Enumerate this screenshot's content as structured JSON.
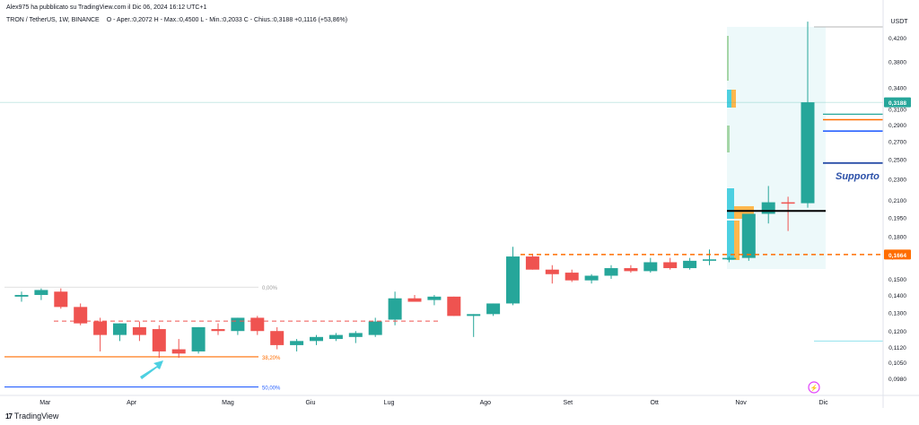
{
  "header": {
    "published": "Alex975 ha pubblicato su TradingView.com il Dic 06, 2024 16:12 UTC+1",
    "symbol": "TRON / TetherUS, 1W, BINANCE",
    "ohlc": "O - Aper.:0,2072  H - Max.:0,4500  L - Min.:0,2033  C - Chius.:0,3188  +0,1116 (+53,86%)"
  },
  "brand": {
    "logo": "17",
    "name": "TradingView"
  },
  "chart_data": {
    "type": "candlestick",
    "currency": "USDT",
    "ylim": [
      0.0915,
      0.44
    ],
    "y_ticks": [
      0.42,
      0.38,
      0.34,
      0.31,
      0.29,
      0.27,
      0.25,
      0.23,
      0.21,
      0.195,
      0.18,
      0.165,
      0.15,
      0.14,
      0.13,
      0.12,
      0.112,
      0.105,
      0.098
    ],
    "y_tick_labels": [
      "0,4200",
      "0,3800",
      "0,3400",
      "0,3100",
      "0,2900",
      "0,2700",
      "0,2500",
      "0,2300",
      "0,2100",
      "0,1950",
      "0,1800",
      "0,1650",
      "0,1500",
      "0,1400",
      "0,1300",
      "0,1200",
      "0,1120",
      "0,1050",
      "0,0980"
    ],
    "x_labels": [
      {
        "label": "Mar",
        "index": 1.2
      },
      {
        "label": "Apr",
        "index": 5.6
      },
      {
        "label": "Mag",
        "index": 10.5
      },
      {
        "label": "Giu",
        "index": 14.7
      },
      {
        "label": "Lug",
        "index": 18.7
      },
      {
        "label": "Ago",
        "index": 23.6
      },
      {
        "label": "Set",
        "index": 27.8
      },
      {
        "label": "Ott",
        "index": 32.2
      },
      {
        "label": "Nov",
        "index": 36.6
      },
      {
        "label": "Dic",
        "index": 40.8
      }
    ],
    "candles": [
      {
        "o": 0.139,
        "h": 0.142,
        "l": 0.136,
        "c": 0.14
      },
      {
        "o": 0.14,
        "h": 0.144,
        "l": 0.137,
        "c": 0.143
      },
      {
        "o": 0.142,
        "h": 0.144,
        "l": 0.132,
        "c": 0.133
      },
      {
        "o": 0.133,
        "h": 0.135,
        "l": 0.123,
        "c": 0.124
      },
      {
        "o": 0.125,
        "h": 0.127,
        "l": 0.11,
        "c": 0.118
      },
      {
        "o": 0.118,
        "h": 0.124,
        "l": 0.115,
        "c": 0.124
      },
      {
        "o": 0.122,
        "h": 0.125,
        "l": 0.115,
        "c": 0.118
      },
      {
        "o": 0.121,
        "h": 0.123,
        "l": 0.107,
        "c": 0.11
      },
      {
        "o": 0.111,
        "h": 0.116,
        "l": 0.107,
        "c": 0.109
      },
      {
        "o": 0.11,
        "h": 0.122,
        "l": 0.109,
        "c": 0.122
      },
      {
        "o": 0.121,
        "h": 0.124,
        "l": 0.118,
        "c": 0.12
      },
      {
        "o": 0.12,
        "h": 0.127,
        "l": 0.118,
        "c": 0.127
      },
      {
        "o": 0.127,
        "h": 0.128,
        "l": 0.118,
        "c": 0.12
      },
      {
        "o": 0.12,
        "h": 0.122,
        "l": 0.111,
        "c": 0.113
      },
      {
        "o": 0.113,
        "h": 0.116,
        "l": 0.11,
        "c": 0.115
      },
      {
        "o": 0.115,
        "h": 0.118,
        "l": 0.113,
        "c": 0.117
      },
      {
        "o": 0.116,
        "h": 0.119,
        "l": 0.115,
        "c": 0.118
      },
      {
        "o": 0.117,
        "h": 0.12,
        "l": 0.114,
        "c": 0.119
      },
      {
        "o": 0.118,
        "h": 0.127,
        "l": 0.117,
        "c": 0.125
      },
      {
        "o": 0.126,
        "h": 0.142,
        "l": 0.123,
        "c": 0.138
      },
      {
        "o": 0.138,
        "h": 0.14,
        "l": 0.136,
        "c": 0.136
      },
      {
        "o": 0.137,
        "h": 0.14,
        "l": 0.134,
        "c": 0.139
      },
      {
        "o": 0.139,
        "h": 0.139,
        "l": 0.128,
        "c": 0.128
      },
      {
        "o": 0.128,
        "h": 0.129,
        "l": 0.117,
        "c": 0.129
      },
      {
        "o": 0.129,
        "h": 0.135,
        "l": 0.128,
        "c": 0.135
      },
      {
        "o": 0.135,
        "h": 0.172,
        "l": 0.134,
        "c": 0.165
      },
      {
        "o": 0.165,
        "h": 0.167,
        "l": 0.156,
        "c": 0.156
      },
      {
        "o": 0.156,
        "h": 0.159,
        "l": 0.147,
        "c": 0.153
      },
      {
        "o": 0.154,
        "h": 0.156,
        "l": 0.148,
        "c": 0.149
      },
      {
        "o": 0.149,
        "h": 0.153,
        "l": 0.147,
        "c": 0.152
      },
      {
        "o": 0.152,
        "h": 0.159,
        "l": 0.15,
        "c": 0.157
      },
      {
        "o": 0.157,
        "h": 0.159,
        "l": 0.154,
        "c": 0.155
      },
      {
        "o": 0.155,
        "h": 0.164,
        "l": 0.154,
        "c": 0.161
      },
      {
        "o": 0.161,
        "h": 0.164,
        "l": 0.156,
        "c": 0.157
      },
      {
        "o": 0.157,
        "h": 0.164,
        "l": 0.156,
        "c": 0.162
      },
      {
        "o": 0.162,
        "h": 0.17,
        "l": 0.159,
        "c": 0.163
      },
      {
        "o": 0.163,
        "h": 0.165,
        "l": 0.161,
        "c": 0.164
      },
      {
        "o": 0.164,
        "h": 0.198,
        "l": 0.162,
        "c": 0.198
      },
      {
        "o": 0.198,
        "h": 0.223,
        "l": 0.19,
        "c": 0.208
      },
      {
        "o": 0.208,
        "h": 0.213,
        "l": 0.184,
        "c": 0.2072
      },
      {
        "o": 0.2072,
        "h": 0.45,
        "l": 0.2033,
        "c": 0.3188
      }
    ],
    "horizontal_lines": [
      {
        "label": "0,3188",
        "value": 0.3188,
        "color": "#26a69a",
        "style": "solid"
      },
      {
        "value": 0.303,
        "color": "#26a69a",
        "style": "solid"
      },
      {
        "value": 0.296,
        "color": "#ff6d00",
        "style": "solid"
      },
      {
        "value": 0.282,
        "color": "#2962ff",
        "style": "solid"
      },
      {
        "value": 0.246,
        "color": "#2a4fa8",
        "style": "solid",
        "label": "Supporto"
      },
      {
        "value": 0.2005,
        "color": "#000000",
        "style": "solid"
      },
      {
        "label": "0,1664",
        "value": 0.1664,
        "color": "#ff6d00",
        "style": "dashed"
      },
      {
        "value": 0.1252,
        "color": "#ef5350",
        "style": "dashed"
      }
    ],
    "fib_levels": [
      {
        "label": "0,00%",
        "value": 0.1448,
        "color": "#9e9e9e"
      },
      {
        "label": "38,20%",
        "value": 0.1075,
        "color": "#ff6d00"
      },
      {
        "label": "50,00%",
        "value": 0.0945,
        "color": "#2962ff"
      }
    ],
    "support_label": "Supporto"
  }
}
